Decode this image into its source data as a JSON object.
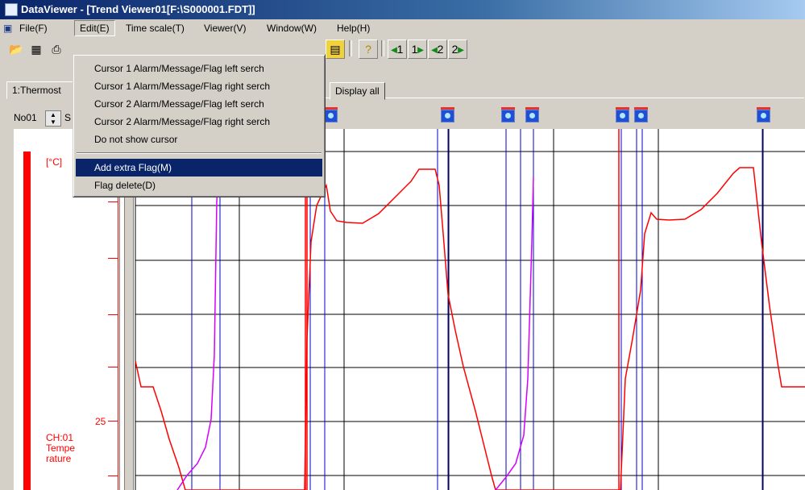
{
  "window": {
    "title": "DataViewer - [Trend Viewer01[F:\\S000001.FDT]]"
  },
  "menubar": {
    "items": [
      "File(F)",
      "Edit(E)",
      "Time scale(T)",
      "Viewer(V)",
      "Window(W)",
      "Help(H)"
    ],
    "open_item": "Edit(E)"
  },
  "toolbar": {
    "buttons": [
      {
        "name": "open-icon"
      },
      {
        "name": "save-icon"
      },
      {
        "name": "print-icon"
      },
      {
        "name": "flag-icon"
      },
      {
        "name": "help-icon"
      },
      {
        "label": "1",
        "name": "cursor1-left-search-button"
      },
      {
        "label": "1",
        "name": "cursor1-right-search-button"
      },
      {
        "label": "2",
        "name": "cursor2-left-search-button"
      },
      {
        "label": "2",
        "name": "cursor2-right-search-button"
      }
    ]
  },
  "tabs": {
    "first": "1:Thermost",
    "display_all": "Display all"
  },
  "channel": {
    "selector": "No01",
    "selector_suffix": "S",
    "unit": "[°C]",
    "tick_value": "25",
    "name": "CH:01",
    "desc": "Temperature"
  },
  "edit_menu": {
    "items": [
      "Cursor 1 Alarm/Message/Flag left serch",
      "Cursor 1 Alarm/Message/Flag right serch",
      "Cursor 2 Alarm/Message/Flag left serch",
      "Cursor 2 Alarm/Message/Flag right serch",
      "Do not show cursor",
      "Add extra Flag(M)",
      "Flag delete(D)"
    ],
    "selected_index": 5
  },
  "colors": {
    "trace_red": "#ff0000",
    "trace_magenta": "#d400ff",
    "cursor_blue": "#0000cc",
    "grid": "#000000",
    "menu_highlight": "#0a246a"
  }
}
